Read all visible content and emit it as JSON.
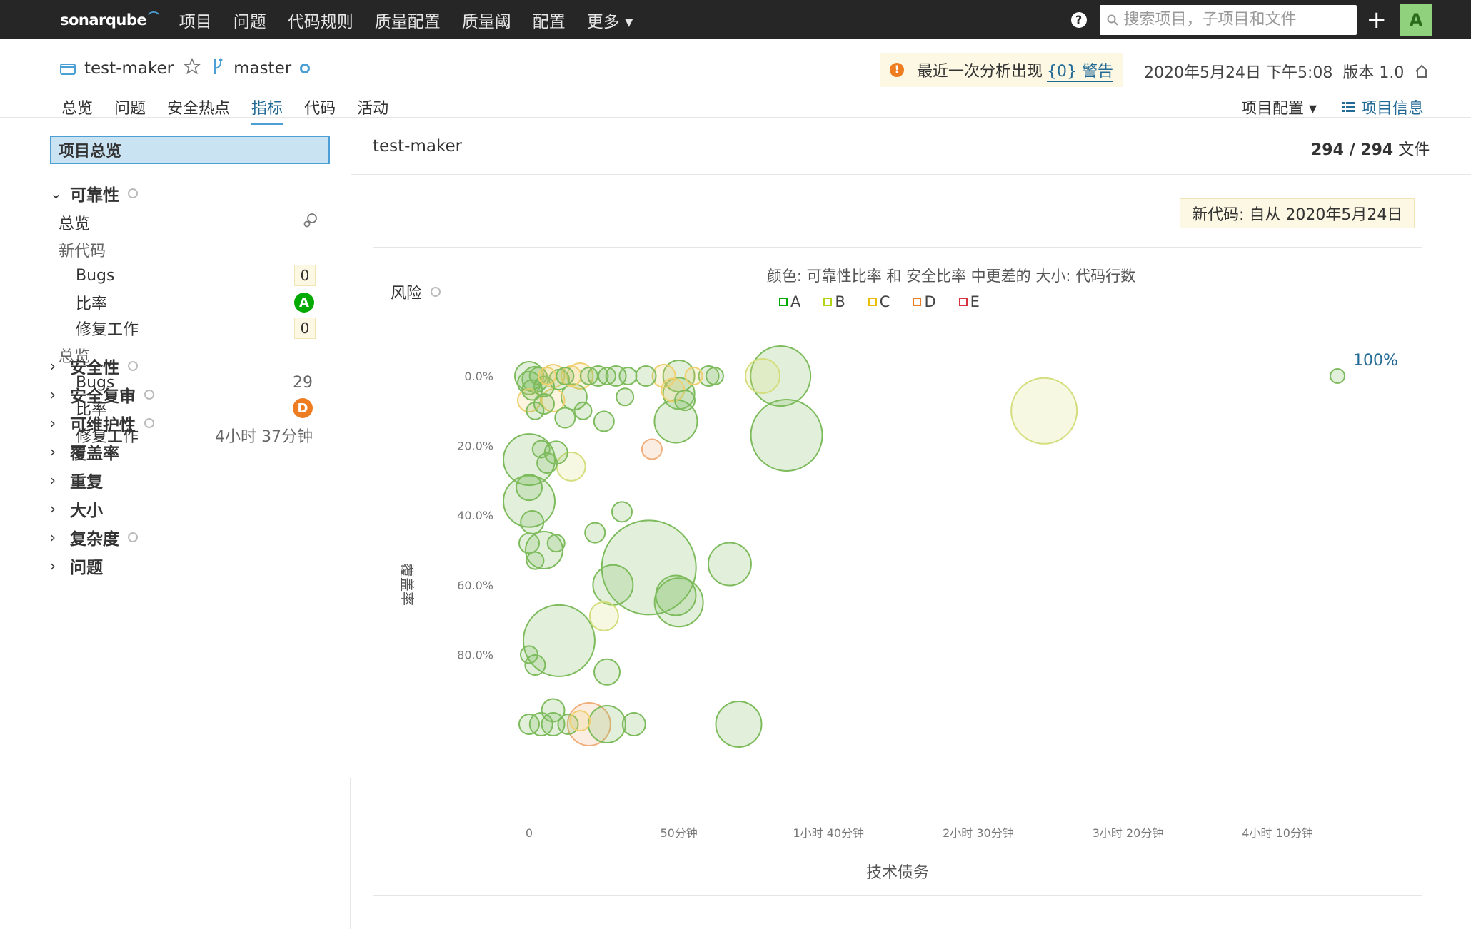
{
  "topnav": {
    "logo": "sonarqube",
    "items": [
      "项目",
      "问题",
      "代码规则",
      "质量配置",
      "质量阈",
      "配置",
      "更多 ▾"
    ],
    "search_placeholder": "搜索项目，子项目和文件",
    "help": "?",
    "plus": "+",
    "avatar": "A"
  },
  "project": {
    "name": "test-maker",
    "branch": "master",
    "warning_text": "最近一次分析出现",
    "warning_link": "{0} 警告",
    "analysis_date": "2020年5月24日 下午5:08",
    "version": "版本 1.0",
    "tabs": [
      "总览",
      "问题",
      "安全热点",
      "指标",
      "代码",
      "活动"
    ],
    "active_tab": 3,
    "config_label": "项目配置 ▾",
    "info_label": "项目信息"
  },
  "sidebar": {
    "overview_label": "项目总览",
    "reliability": {
      "title": "可靠性",
      "overview_label": "总览",
      "new_code_label": "新代码",
      "new_bugs_label": "Bugs",
      "new_bugs": "0",
      "new_rating_label": "比率",
      "new_rating": "A",
      "new_effort_label": "修复工作",
      "new_effort": "0",
      "overall_label": "总览",
      "bugs_label": "Bugs",
      "bugs": "29",
      "rating_label": "比率",
      "rating": "D",
      "effort_label": "修复工作",
      "effort": "4小时 37分钟"
    },
    "categories": [
      "安全性",
      "安全复审",
      "可维护性",
      "覆盖率",
      "重复",
      "大小",
      "复杂度",
      "问题"
    ]
  },
  "main": {
    "title": "test-maker",
    "files_count": "294 / 294",
    "files_label": "文件",
    "new_code_label": "新代码: 自从 2020年5月24日",
    "risk_label": "风险",
    "chart_desc": "颜色: 可靠性比率 和 安全比率 中更差的  大小: 代码行数",
    "pct_100": "100%"
  },
  "chart_data": {
    "type": "scatter",
    "title": "风险",
    "xlabel": "技术债务",
    "ylabel": "覆盖率",
    "x_unit": "minutes",
    "y_unit": "percent",
    "xlim": [
      0,
      270
    ],
    "ylim": [
      0,
      100
    ],
    "y_reversed": true,
    "xticks": [
      0,
      50,
      100,
      150,
      200,
      250
    ],
    "xtick_labels": [
      "0",
      "50分钟",
      "1小时 40分钟",
      "2小时 30分钟",
      "3小时 20分钟",
      "4小时 10分钟"
    ],
    "yticks": [
      0,
      20,
      40,
      60,
      80
    ],
    "ytick_labels": [
      "0.0%",
      "20.0%",
      "40.0%",
      "60.0%",
      "80.0%"
    ],
    "legend": [
      {
        "label": "A",
        "color": "#00aa00"
      },
      {
        "label": "B",
        "color": "#b0d513"
      },
      {
        "label": "C",
        "color": "#eabe06"
      },
      {
        "label": "D",
        "color": "#ed7d20"
      },
      {
        "label": "E",
        "color": "#d4333f"
      }
    ],
    "colors": {
      "A": "#7dbb5c",
      "B": "#d4de7c",
      "C": "#efcf6e",
      "D": "#efae7b",
      "E": "#e5848b"
    },
    "points": [
      {
        "x": 0,
        "y": 0,
        "r": 20,
        "rating": "A"
      },
      {
        "x": 0,
        "y": 2,
        "r": 16,
        "rating": "A"
      },
      {
        "x": 1,
        "y": 4,
        "r": 14,
        "rating": "A"
      },
      {
        "x": 2,
        "y": 1,
        "r": 18,
        "rating": "A"
      },
      {
        "x": 3,
        "y": 0,
        "r": 12,
        "rating": "A"
      },
      {
        "x": 5,
        "y": 3,
        "r": 14,
        "rating": "A"
      },
      {
        "x": 6,
        "y": 0,
        "r": 12,
        "rating": "C"
      },
      {
        "x": 8,
        "y": 0,
        "r": 16,
        "rating": "C"
      },
      {
        "x": 10,
        "y": 1,
        "r": 14,
        "rating": "A"
      },
      {
        "x": 12,
        "y": 0,
        "r": 12,
        "rating": "A"
      },
      {
        "x": 14,
        "y": 0,
        "r": 14,
        "rating": "C"
      },
      {
        "x": 17,
        "y": 0,
        "r": 18,
        "rating": "C"
      },
      {
        "x": 20,
        "y": 0,
        "r": 12,
        "rating": "A"
      },
      {
        "x": 23,
        "y": 0,
        "r": 14,
        "rating": "A"
      },
      {
        "x": 26,
        "y": 0,
        "r": 12,
        "rating": "A"
      },
      {
        "x": 29,
        "y": 0,
        "r": 14,
        "rating": "A"
      },
      {
        "x": 33,
        "y": 0,
        "r": 12,
        "rating": "A"
      },
      {
        "x": 39,
        "y": 0,
        "r": 14,
        "rating": "A"
      },
      {
        "x": 45,
        "y": 0,
        "r": 16,
        "rating": "C"
      },
      {
        "x": 50,
        "y": 0,
        "r": 22,
        "rating": "A"
      },
      {
        "x": 55,
        "y": 0,
        "r": 12,
        "rating": "C"
      },
      {
        "x": 60,
        "y": 0,
        "r": 14,
        "rating": "A"
      },
      {
        "x": 62,
        "y": 0,
        "r": 12,
        "rating": "A"
      },
      {
        "x": 78,
        "y": 0,
        "r": 24,
        "rating": "B"
      },
      {
        "x": 84,
        "y": 0,
        "r": 42,
        "rating": "A"
      },
      {
        "x": 0,
        "y": 7,
        "r": 16,
        "rating": "C"
      },
      {
        "x": 2,
        "y": 10,
        "r": 12,
        "rating": "A"
      },
      {
        "x": 5,
        "y": 8,
        "r": 14,
        "rating": "A"
      },
      {
        "x": 8,
        "y": 7,
        "r": 16,
        "rating": "C"
      },
      {
        "x": 12,
        "y": 12,
        "r": 14,
        "rating": "A"
      },
      {
        "x": 15,
        "y": 6,
        "r": 18,
        "rating": "A"
      },
      {
        "x": 18,
        "y": 10,
        "r": 12,
        "rating": "A"
      },
      {
        "x": 25,
        "y": 13,
        "r": 14,
        "rating": "A"
      },
      {
        "x": 32,
        "y": 6,
        "r": 12,
        "rating": "A"
      },
      {
        "x": 48,
        "y": 4,
        "r": 16,
        "rating": "C"
      },
      {
        "x": 50,
        "y": 5,
        "r": 22,
        "rating": "A"
      },
      {
        "x": 52,
        "y": 7,
        "r": 14,
        "rating": "A"
      },
      {
        "x": 49,
        "y": 13,
        "r": 30,
        "rating": "A"
      },
      {
        "x": 86,
        "y": 17,
        "r": 50,
        "rating": "A"
      },
      {
        "x": 172,
        "y": 10,
        "r": 46,
        "rating": "B"
      },
      {
        "x": 41,
        "y": 21,
        "r": 14,
        "rating": "D"
      },
      {
        "x": 0,
        "y": 24,
        "r": 36,
        "rating": "A"
      },
      {
        "x": 4,
        "y": 21,
        "r": 12,
        "rating": "A"
      },
      {
        "x": 6,
        "y": 25,
        "r": 14,
        "rating": "A"
      },
      {
        "x": 9,
        "y": 22,
        "r": 16,
        "rating": "A"
      },
      {
        "x": 14,
        "y": 26,
        "r": 20,
        "rating": "B"
      },
      {
        "x": 0,
        "y": 36,
        "r": 36,
        "rating": "A"
      },
      {
        "x": 0,
        "y": 32,
        "r": 18,
        "rating": "A"
      },
      {
        "x": 1,
        "y": 42,
        "r": 16,
        "rating": "A"
      },
      {
        "x": 31,
        "y": 39,
        "r": 14,
        "rating": "A"
      },
      {
        "x": 22,
        "y": 45,
        "r": 14,
        "rating": "A"
      },
      {
        "x": 0,
        "y": 48,
        "r": 14,
        "rating": "A"
      },
      {
        "x": 5,
        "y": 50,
        "r": 26,
        "rating": "A"
      },
      {
        "x": 9,
        "y": 48,
        "r": 12,
        "rating": "A"
      },
      {
        "x": 2,
        "y": 53,
        "r": 12,
        "rating": "A"
      },
      {
        "x": 40,
        "y": 55,
        "r": 66,
        "rating": "A"
      },
      {
        "x": 67,
        "y": 54,
        "r": 30,
        "rating": "A"
      },
      {
        "x": 28,
        "y": 60,
        "r": 28,
        "rating": "A"
      },
      {
        "x": 49,
        "y": 63,
        "r": 28,
        "rating": "A"
      },
      {
        "x": 50,
        "y": 65,
        "r": 34,
        "rating": "A"
      },
      {
        "x": 25,
        "y": 69,
        "r": 20,
        "rating": "B"
      },
      {
        "x": 10,
        "y": 76,
        "r": 50,
        "rating": "A"
      },
      {
        "x": 0,
        "y": 80,
        "r": 12,
        "rating": "A"
      },
      {
        "x": 2,
        "y": 83,
        "r": 14,
        "rating": "A"
      },
      {
        "x": 26,
        "y": 85,
        "r": 18,
        "rating": "A"
      },
      {
        "x": 0,
        "y": 100,
        "r": 14,
        "rating": "A"
      },
      {
        "x": 4,
        "y": 100,
        "r": 16,
        "rating": "A"
      },
      {
        "x": 8,
        "y": 100,
        "r": 16,
        "rating": "A"
      },
      {
        "x": 8,
        "y": 96,
        "r": 16,
        "rating": "A"
      },
      {
        "x": 13,
        "y": 100,
        "r": 14,
        "rating": "A"
      },
      {
        "x": 17,
        "y": 99,
        "r": 14,
        "rating": "C"
      },
      {
        "x": 20,
        "y": 100,
        "r": 30,
        "rating": "D"
      },
      {
        "x": 26,
        "y": 100,
        "r": 26,
        "rating": "A"
      },
      {
        "x": 35,
        "y": 100,
        "r": 16,
        "rating": "A"
      },
      {
        "x": 70,
        "y": 100,
        "r": 32,
        "rating": "A"
      },
      {
        "x": 270,
        "y": 0,
        "r": 10,
        "rating": "A"
      }
    ]
  }
}
